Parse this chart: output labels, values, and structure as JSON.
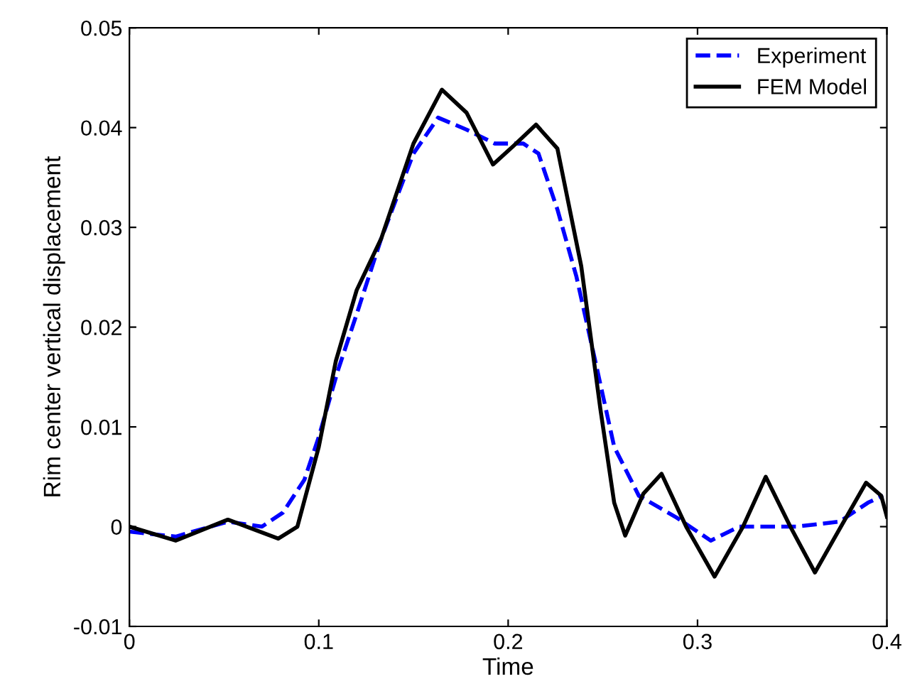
{
  "chart_data": {
    "type": "line",
    "xlabel": "Time",
    "ylabel": "Rim center vertical displacement",
    "xlim": [
      0,
      0.4
    ],
    "ylim": [
      -0.01,
      0.05
    ],
    "xticks": [
      0,
      0.1,
      0.2,
      0.3,
      0.4
    ],
    "yticks": [
      -0.01,
      0,
      0.01,
      0.02,
      0.03,
      0.04,
      0.05
    ],
    "grid": false,
    "legend": "top right",
    "series": [
      {
        "name": "Experiment",
        "color": "#0000ff",
        "line_style": "dashed",
        "x": [
          0,
          0.0244,
          0.052,
          0.07,
          0.081,
          0.0924,
          0.1,
          0.11,
          0.12,
          0.133,
          0.15,
          0.163,
          0.178,
          0.193,
          0.208,
          0.216,
          0.226,
          0.236,
          0.246,
          0.256,
          0.269,
          0.289,
          0.307,
          0.322,
          0.352,
          0.375,
          0.39,
          0.398
        ],
        "values": [
          -0.0005,
          -0.001,
          0.0005,
          0,
          0.0014,
          0.0047,
          0.009,
          0.0156,
          0.0213,
          0.0289,
          0.0374,
          0.041,
          0.0398,
          0.0384,
          0.0384,
          0.0374,
          0.0318,
          0.0251,
          0.0166,
          0.008,
          0.0031,
          0.0009,
          -0.0014,
          0,
          0,
          0.0005,
          0.0024,
          0.0031
        ]
      },
      {
        "name": "FEM Model",
        "color": "#000000",
        "line_style": "solid",
        "x": [
          0,
          0.0244,
          0.052,
          0.0786,
          0.0887,
          0.1,
          0.109,
          0.12,
          0.133,
          0.15,
          0.165,
          0.178,
          0.192,
          0.203,
          0.2147,
          0.226,
          0.2386,
          0.2487,
          0.256,
          0.2618,
          0.2714,
          0.281,
          0.294,
          0.309,
          0.324,
          0.336,
          0.349,
          0.362,
          0.3757,
          0.389,
          0.397,
          0.4
        ],
        "values": [
          0,
          -0.0014,
          0.0007,
          -0.0012,
          0,
          0.008,
          0.0166,
          0.0237,
          0.0289,
          0.0384,
          0.0438,
          0.0415,
          0.0363,
          0.0382,
          0.0403,
          0.0379,
          0.0261,
          0.0118,
          0.0024,
          -0.0009,
          0.0033,
          0.0053,
          0,
          -0.005,
          0,
          0.005,
          0,
          -0.0046,
          0,
          0.0044,
          0.0031,
          0.001
        ]
      }
    ]
  }
}
